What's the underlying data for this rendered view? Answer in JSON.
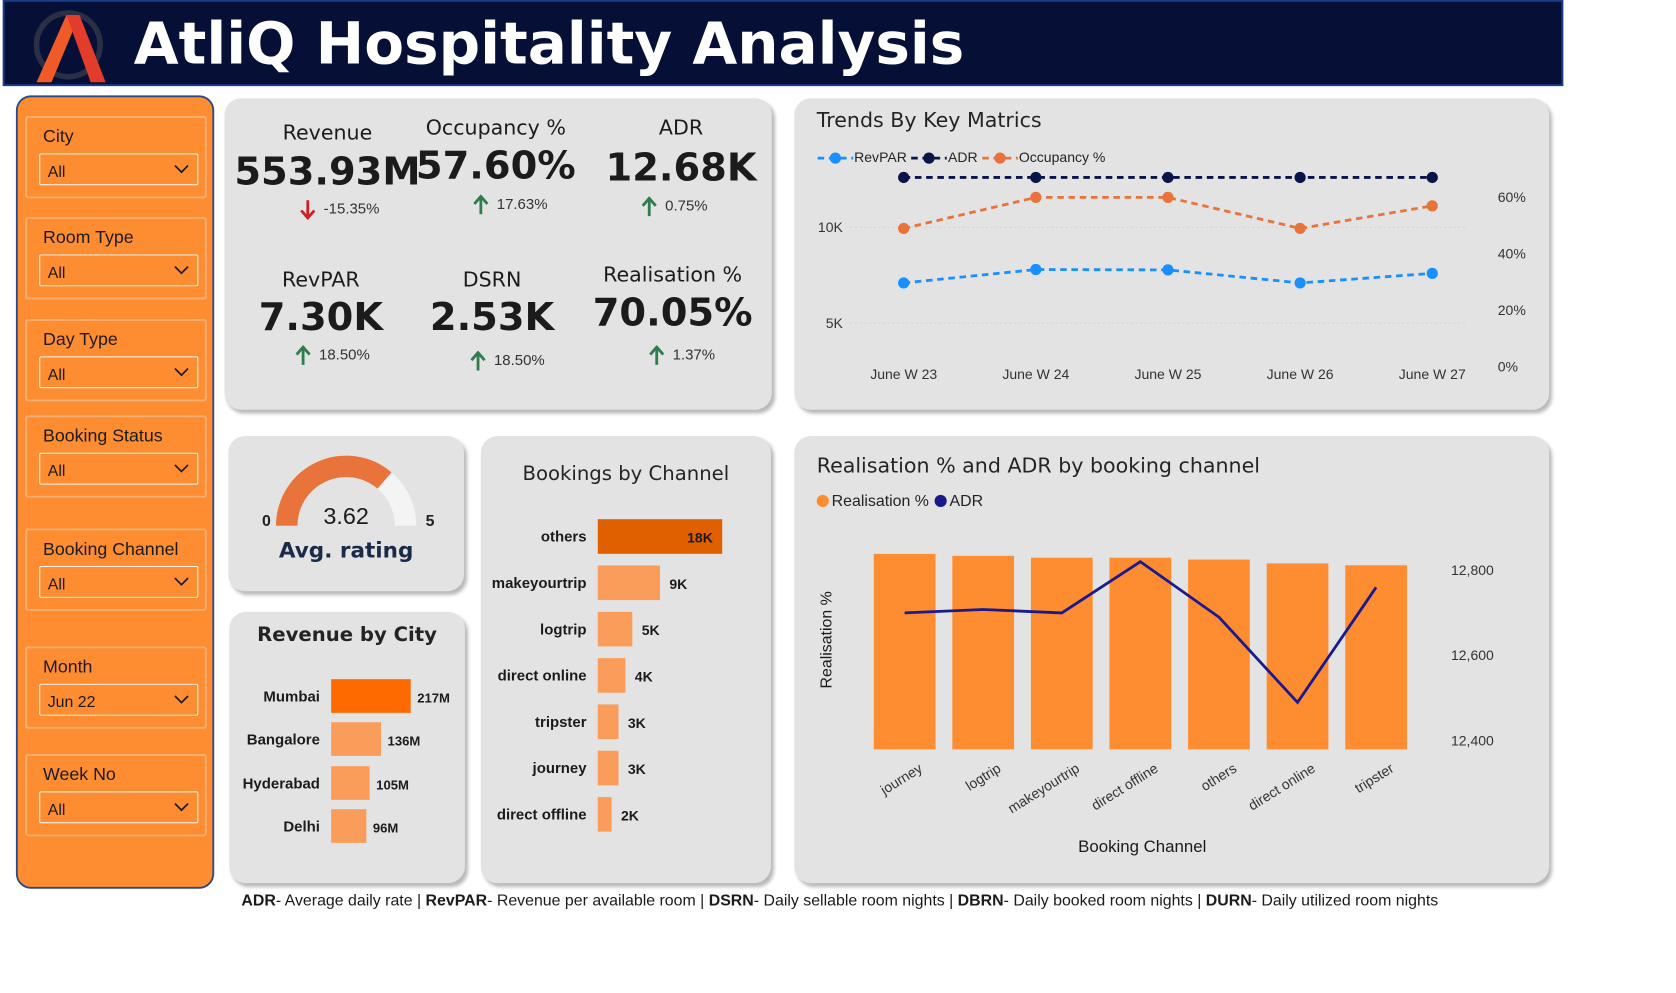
{
  "header": {
    "title": "AtliQ Hospitality Analysis",
    "logo_icon": "atliq-logo-icon"
  },
  "filters": [
    {
      "label": "City",
      "value": "All"
    },
    {
      "label": "Room Type",
      "value": "All"
    },
    {
      "label": "Day Type",
      "value": "All"
    },
    {
      "label": "Booking Status",
      "value": "All"
    },
    {
      "label": "Booking Channel",
      "value": "All"
    },
    {
      "label": "Month",
      "value": "Jun 22"
    },
    {
      "label": "Week No",
      "value": "All"
    }
  ],
  "kpis": [
    {
      "label": "Revenue",
      "value": "553.93M",
      "change": "-15.35%",
      "direction": "down"
    },
    {
      "label": "Occupancy %",
      "value": "57.60%",
      "change": "17.63%",
      "direction": "up"
    },
    {
      "label": "ADR",
      "value": "12.68K",
      "change": "0.75%",
      "direction": "up"
    },
    {
      "label": "RevPAR",
      "value": "7.30K",
      "change": "18.50%",
      "direction": "up"
    },
    {
      "label": "DSRN",
      "value": "2.53K",
      "change": "18.50%",
      "direction": "up"
    },
    {
      "label": "Realisation %",
      "value": "70.05%",
      "change": "1.37%",
      "direction": "up"
    }
  ],
  "colors": {
    "orange": "#fe8c31",
    "dark_orange": "#e06000",
    "navy": "#061036",
    "blue": "#1a8fff",
    "adr_navy": "#1a1a8c",
    "up_green": "#2e7d4f",
    "down_red": "#cc2222"
  },
  "rating": {
    "title": "Avg. rating",
    "value": "3.62",
    "min": "0",
    "max": "5",
    "level": 3.62
  },
  "chart_data": [
    {
      "type": "line",
      "title": "Trends By Key Matrics",
      "x": [
        "June W 23",
        "June W 24",
        "June W 25",
        "June W 26",
        "June W 27"
      ],
      "y_left_ticks": [
        "5K",
        "10K"
      ],
      "y_right_ticks": [
        "0%",
        "20%",
        "40%",
        "60%"
      ],
      "y_left_range": [
        2000,
        12000
      ],
      "y_right_range": [
        0,
        60
      ],
      "series": [
        {
          "name": "RevPAR",
          "values": [
            7100,
            7800,
            7780,
            7100,
            7600
          ],
          "axis": "left",
          "color": "#1a8fff"
        },
        {
          "name": "ADR",
          "values": [
            12600,
            12600,
            12600,
            12600,
            12600
          ],
          "axis": "left",
          "color": "#0a1448"
        },
        {
          "name": "Occupancy %",
          "values": [
            49,
            60,
            60,
            49,
            57
          ],
          "axis": "right",
          "color": "#e8743b"
        }
      ]
    },
    {
      "type": "bar",
      "title": "Bookings by Channel",
      "categories": [
        "others",
        "makeyourtrip",
        "logtrip",
        "direct online",
        "tripster",
        "journey",
        "direct offline"
      ],
      "values": [
        18000,
        9000,
        5000,
        4000,
        3000,
        3000,
        2000
      ],
      "labels": [
        "18K",
        "9K",
        "5K",
        "4K",
        "3K",
        "3K",
        "2K"
      ]
    },
    {
      "type": "bar",
      "title": "Revenue by City",
      "categories": [
        "Mumbai",
        "Bangalore",
        "Hyderabad",
        "Delhi"
      ],
      "values": [
        217,
        136,
        105,
        96
      ],
      "labels": [
        "217M",
        "136M",
        "105M",
        "96M"
      ]
    },
    {
      "type": "bar",
      "title": "Realisation % and ADR by booking channel",
      "xlabel": "Booking Channel",
      "ylabel": "Realisation %",
      "categories": [
        "journey",
        "logtrip",
        "makeyourtrip",
        "direct offline",
        "others",
        "direct online",
        "tripster"
      ],
      "series": [
        {
          "name": "Realisation %",
          "values": [
            70.3,
            70.2,
            70.1,
            70.1,
            70.0,
            69.8,
            69.7
          ],
          "color": "#fe8c31"
        },
        {
          "name": "ADR",
          "values": [
            12700,
            12708,
            12700,
            12820,
            12690,
            12490,
            12760
          ],
          "color": "#1a1a8c"
        }
      ],
      "y_right_ticks": [
        "12,400",
        "12,600",
        "12,800"
      ],
      "y_right_range": [
        12380,
        12900
      ]
    }
  ],
  "footer": {
    "items": [
      {
        "abbr": "ADR",
        "text": "- Average daily rate | "
      },
      {
        "abbr": "RevPAR",
        "text": "- Revenue per available room | "
      },
      {
        "abbr": "DSRN",
        "text": "- Daily sellable room nights | "
      },
      {
        "abbr": "DBRN",
        "text": "- Daily booked room nights | "
      },
      {
        "abbr": "DURN",
        "text": "- Daily utilized room nights"
      }
    ]
  }
}
